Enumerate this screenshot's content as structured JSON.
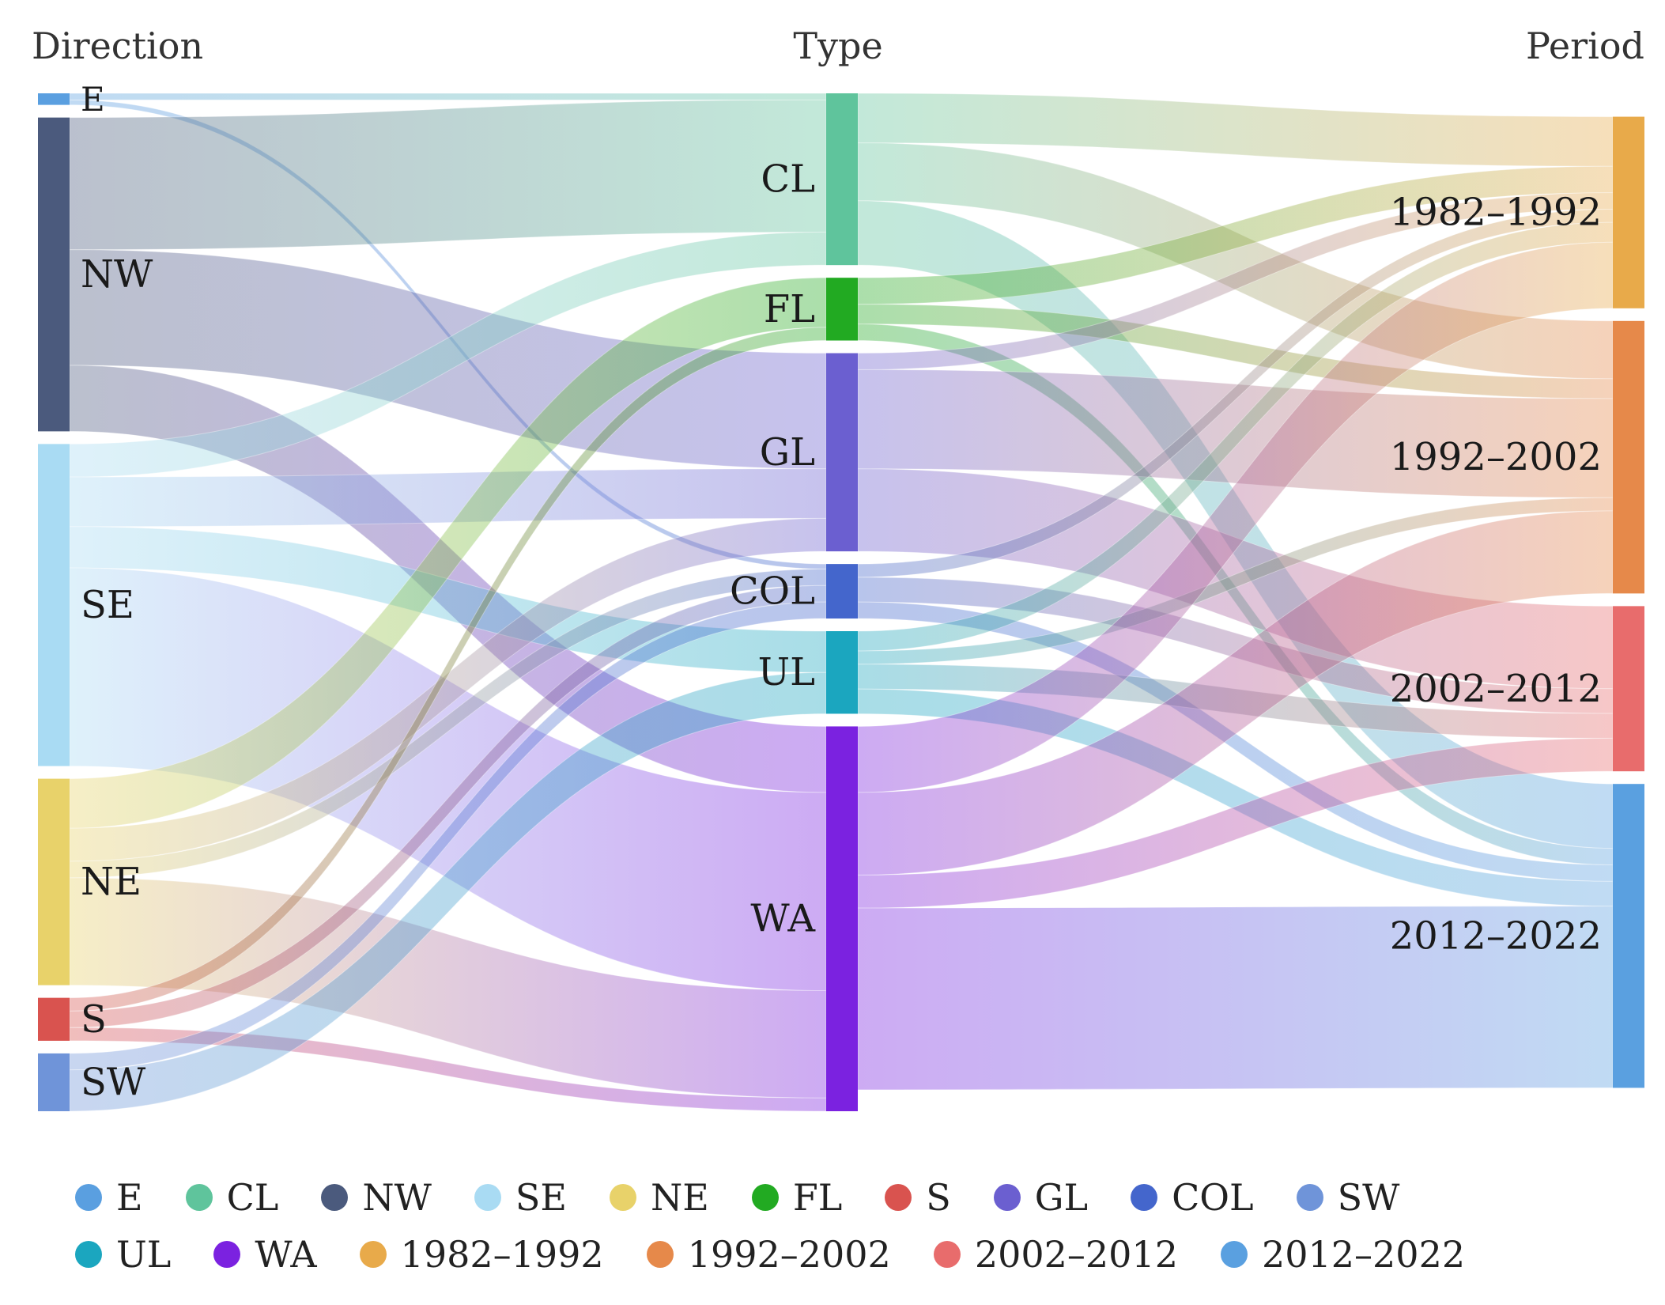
{
  "chart_data": {
    "type": "sankey",
    "column_titles": [
      "Direction",
      "Type",
      "Period"
    ],
    "nodes": [
      {
        "id": "E",
        "label": "E",
        "column": 0,
        "color": "#5a9fe0"
      },
      {
        "id": "NW",
        "label": "NW",
        "column": 0,
        "color": "#4b5a7d"
      },
      {
        "id": "SE",
        "label": "SE",
        "column": 0,
        "color": "#a9dbf3"
      },
      {
        "id": "NE",
        "label": "NE",
        "column": 0,
        "color": "#e8d26a"
      },
      {
        "id": "S",
        "label": "S",
        "column": 0,
        "color": "#d9534f"
      },
      {
        "id": "SW",
        "label": "SW",
        "column": 0,
        "color": "#6f94d9"
      },
      {
        "id": "CL",
        "label": "CL",
        "column": 1,
        "color": "#5fc49c"
      },
      {
        "id": "FL",
        "label": "FL",
        "column": 1,
        "color": "#22aa22"
      },
      {
        "id": "GL",
        "label": "GL",
        "column": 1,
        "color": "#6b5fd0"
      },
      {
        "id": "COL",
        "label": "COL",
        "column": 1,
        "color": "#4466cc"
      },
      {
        "id": "UL",
        "label": "UL",
        "column": 1,
        "color": "#1ba6bf"
      },
      {
        "id": "WA",
        "label": "WA",
        "column": 1,
        "color": "#7b22e0"
      },
      {
        "id": "P1",
        "label": "1982–1992",
        "column": 2,
        "color": "#e8aa4a"
      },
      {
        "id": "P2",
        "label": "1992–2002",
        "column": 2,
        "color": "#e6894a"
      },
      {
        "id": "P3",
        "label": "2002–2012",
        "column": 2,
        "color": "#e86c6c"
      },
      {
        "id": "P4",
        "label": "2012–2022",
        "column": 2,
        "color": "#5aa0e0"
      }
    ],
    "links": [
      {
        "source": "E",
        "target": "CL",
        "value": 4
      },
      {
        "source": "E",
        "target": "COL",
        "value": 3
      },
      {
        "source": "NW",
        "target": "CL",
        "value": 80
      },
      {
        "source": "NW",
        "target": "GL",
        "value": 70
      },
      {
        "source": "NW",
        "target": "WA",
        "value": 40
      },
      {
        "source": "SE",
        "target": "CL",
        "value": 20
      },
      {
        "source": "SE",
        "target": "GL",
        "value": 30
      },
      {
        "source": "SE",
        "target": "UL",
        "value": 25
      },
      {
        "source": "SE",
        "target": "WA",
        "value": 120
      },
      {
        "source": "NE",
        "target": "FL",
        "value": 30
      },
      {
        "source": "NE",
        "target": "GL",
        "value": 20
      },
      {
        "source": "NE",
        "target": "COL",
        "value": 10
      },
      {
        "source": "NE",
        "target": "WA",
        "value": 65
      },
      {
        "source": "S",
        "target": "FL",
        "value": 8
      },
      {
        "source": "S",
        "target": "COL",
        "value": 10
      },
      {
        "source": "S",
        "target": "WA",
        "value": 8
      },
      {
        "source": "SW",
        "target": "COL",
        "value": 10
      },
      {
        "source": "SW",
        "target": "UL",
        "value": 25
      },
      {
        "source": "CL",
        "target": "P1",
        "value": 30
      },
      {
        "source": "CL",
        "target": "P2",
        "value": 35
      },
      {
        "source": "CL",
        "target": "P4",
        "value": 39
      },
      {
        "source": "FL",
        "target": "P1",
        "value": 16
      },
      {
        "source": "FL",
        "target": "P2",
        "value": 12
      },
      {
        "source": "FL",
        "target": "P4",
        "value": 10
      },
      {
        "source": "GL",
        "target": "P1",
        "value": 10
      },
      {
        "source": "GL",
        "target": "P2",
        "value": 60
      },
      {
        "source": "GL",
        "target": "P3",
        "value": 50
      },
      {
        "source": "COL",
        "target": "P1",
        "value": 8
      },
      {
        "source": "COL",
        "target": "P3",
        "value": 15
      },
      {
        "source": "COL",
        "target": "P4",
        "value": 10
      },
      {
        "source": "UL",
        "target": "P1",
        "value": 12
      },
      {
        "source": "UL",
        "target": "P2",
        "value": 8
      },
      {
        "source": "UL",
        "target": "P3",
        "value": 15
      },
      {
        "source": "UL",
        "target": "P4",
        "value": 15
      },
      {
        "source": "WA",
        "target": "P1",
        "value": 40
      },
      {
        "source": "WA",
        "target": "P2",
        "value": 50
      },
      {
        "source": "WA",
        "target": "P3",
        "value": 20
      },
      {
        "source": "WA",
        "target": "P4",
        "value": 110
      }
    ]
  },
  "legend": [
    [
      {
        "label": "E",
        "color": "#5a9fe0"
      },
      {
        "label": "CL",
        "color": "#5fc49c"
      },
      {
        "label": "NW",
        "color": "#4b5a7d"
      },
      {
        "label": "SE",
        "color": "#a9dbf3"
      },
      {
        "label": "NE",
        "color": "#e8d26a"
      },
      {
        "label": "FL",
        "color": "#22aa22"
      },
      {
        "label": "S",
        "color": "#d9534f"
      },
      {
        "label": "GL",
        "color": "#6b5fd0"
      },
      {
        "label": "COL",
        "color": "#4466cc"
      },
      {
        "label": "SW",
        "color": "#6f94d9"
      }
    ],
    [
      {
        "label": "UL",
        "color": "#1ba6bf"
      },
      {
        "label": "WA",
        "color": "#7b22e0"
      },
      {
        "label": "1982–1992",
        "color": "#e8aa4a"
      },
      {
        "label": "1992–2002",
        "color": "#e6894a"
      },
      {
        "label": "2002–2012",
        "color": "#e86c6c"
      },
      {
        "label": "2012–2022",
        "color": "#5aa0e0"
      }
    ]
  ]
}
